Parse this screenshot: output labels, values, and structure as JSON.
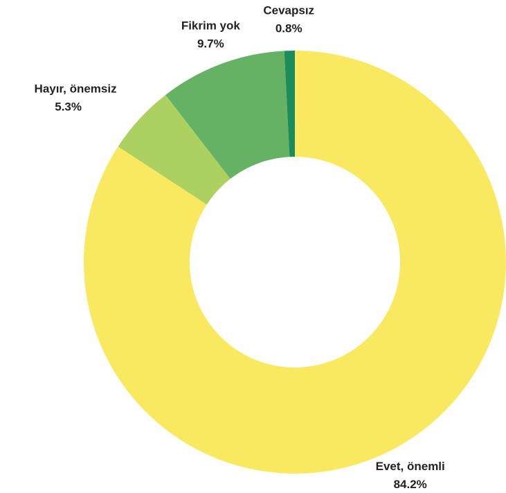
{
  "chart_data": {
    "type": "donut",
    "categories": [
      "Evet, önemli",
      "Hayır, önemsiz",
      "Fikrim yok",
      "Cevapsız"
    ],
    "values": [
      84.2,
      5.3,
      9.7,
      0.8
    ],
    "value_labels": [
      "84.2%",
      "5.3%",
      "9.7%",
      "0.8%"
    ],
    "colors": [
      "#f9e960",
      "#acd160",
      "#65b264",
      "#1e8c5a"
    ]
  }
}
